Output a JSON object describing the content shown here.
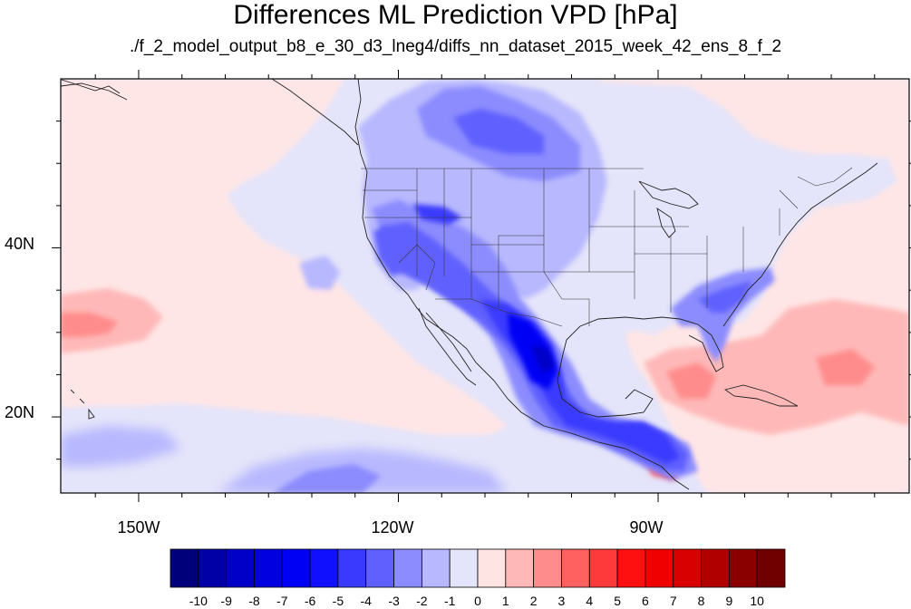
{
  "title": "Differences ML Prediction VPD [hPa]",
  "subtitle": "./f_2_model_output_b8_e_30_d3_lneg4/diffs_nn_dataset_2015_week_42_ens_8_f_2",
  "map": {
    "lon_range": [
      -159,
      -61
    ],
    "lat_range": [
      11,
      60
    ],
    "lon_ticks": [
      {
        "value": -150,
        "label": "150W"
      },
      {
        "value": -120,
        "label": "120W"
      },
      {
        "value": -90,
        "label": "90W"
      }
    ],
    "lat_ticks": [
      {
        "value": 40,
        "label": "40N"
      },
      {
        "value": 20,
        "label": "20N"
      }
    ],
    "background_level": "0 to 1 (light pink) over Pacific, -1 to 0 (lavender) elsewhere"
  },
  "colorbar": {
    "labels": [
      "-10",
      "-9",
      "-8",
      "-7",
      "-6",
      "-5",
      "-4",
      "-3",
      "-2",
      "-1",
      "0",
      "1",
      "2",
      "3",
      "4",
      "5",
      "6",
      "7",
      "8",
      "9",
      "10"
    ],
    "colors": [
      "#00007a",
      "#0000a6",
      "#0000c8",
      "#0000e0",
      "#0000f5",
      "#1010ff",
      "#3a3aff",
      "#6060ff",
      "#8c8cff",
      "#b8b8ff",
      "#e4e4fa",
      "#ffe4e4",
      "#ffb8b8",
      "#ff8c8c",
      "#ff6060",
      "#ff3a3a",
      "#ff1010",
      "#f00000",
      "#d80000",
      "#b00000",
      "#8a0000",
      "#700000"
    ]
  }
}
